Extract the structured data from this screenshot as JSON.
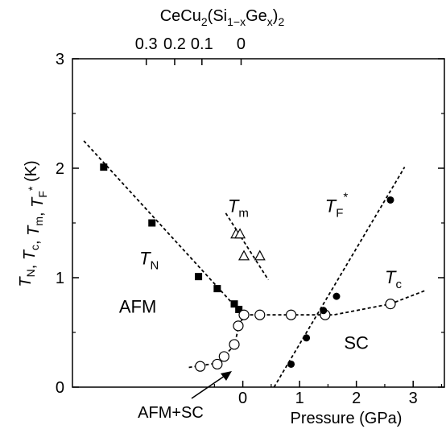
{
  "chart_data": {
    "type": "scatter",
    "top_axis": {
      "title": {
        "base": "CeCu",
        "sub1": "2",
        "mid": "(Si",
        "sub2": "1−x",
        "mid2": "Ge",
        "sub3": "x",
        "end": ")",
        "sub4": "2"
      },
      "ticks": [
        {
          "label": "0.3",
          "pressure": -1.7
        },
        {
          "label": "0.2",
          "pressure": -1.2
        },
        {
          "label": "0.1",
          "pressure": -0.72
        },
        {
          "label": "0",
          "pressure": -0.03
        }
      ]
    },
    "x_axis": {
      "label": "Pressure  (GPa)",
      "range": [
        -3.0,
        3.55
      ],
      "ticks": [
        0,
        1,
        2,
        3
      ]
    },
    "y_axis": {
      "label_parts": [
        {
          "t": "T",
          "i": true
        },
        {
          "t": "N",
          "sub": true
        },
        {
          "t": ", "
        },
        {
          "t": "T",
          "i": true
        },
        {
          "t": "c",
          "sub": true
        },
        {
          "t": ", "
        },
        {
          "t": "T",
          "i": true
        },
        {
          "t": "m",
          "sub": true
        },
        {
          "t": ", "
        },
        {
          "t": "T",
          "i": true
        },
        {
          "t": "F",
          "sub": true
        },
        {
          "t": "*",
          "sup": true
        },
        {
          "t": "  (K)"
        }
      ],
      "range": [
        0,
        3
      ],
      "ticks": [
        0,
        1,
        2,
        3
      ]
    },
    "series": [
      {
        "name": "T_N",
        "marker": "filled-square",
        "points": [
          [
            -2.45,
            2.01
          ],
          [
            -1.6,
            1.5
          ],
          [
            -0.78,
            1.01
          ],
          [
            -0.45,
            0.9
          ],
          [
            -0.15,
            0.76
          ],
          [
            -0.07,
            0.71
          ]
        ]
      },
      {
        "name": "T_m",
        "marker": "open-triangle",
        "points": [
          [
            -0.12,
            1.4
          ],
          [
            -0.05,
            1.4
          ],
          [
            0.02,
            1.2
          ],
          [
            0.3,
            1.2
          ]
        ]
      },
      {
        "name": "T_c",
        "marker": "open-circle",
        "points": [
          [
            -0.75,
            0.19
          ],
          [
            -0.45,
            0.21
          ],
          [
            -0.33,
            0.28
          ],
          [
            -0.15,
            0.39
          ],
          [
            -0.08,
            0.56
          ],
          [
            0.02,
            0.66
          ],
          [
            0.3,
            0.66
          ],
          [
            0.85,
            0.66
          ],
          [
            1.45,
            0.66
          ],
          [
            2.6,
            0.76
          ]
        ]
      },
      {
        "name": "T_F*",
        "marker": "filled-circle",
        "points": [
          [
            0.85,
            0.21
          ],
          [
            1.12,
            0.45
          ],
          [
            1.42,
            0.7
          ],
          [
            1.65,
            0.83
          ],
          [
            2.6,
            1.71
          ]
        ]
      }
    ],
    "fit_lines": [
      {
        "series": "T_N",
        "points": [
          [
            -2.8,
            2.25
          ],
          [
            -0.05,
            0.69
          ]
        ]
      },
      {
        "series": "T_m",
        "points": [
          [
            -0.3,
            1.59
          ],
          [
            0.45,
            0.98
          ]
        ]
      },
      {
        "series": "T_c",
        "points": [
          [
            -0.95,
            0.18
          ],
          [
            -0.45,
            0.22
          ],
          [
            -0.15,
            0.38
          ],
          [
            -0.05,
            0.6
          ],
          [
            0.1,
            0.66
          ],
          [
            0.9,
            0.66
          ],
          [
            1.6,
            0.66
          ],
          [
            2.6,
            0.76
          ],
          [
            3.2,
            0.88
          ]
        ]
      },
      {
        "series": "T_F*",
        "points": [
          [
            0.55,
            0.0
          ],
          [
            2.85,
            2.01
          ]
        ]
      }
    ],
    "labels": [
      {
        "id": "tn",
        "main": "T",
        "sub": "N",
        "x": -1.65,
        "y": 1.12
      },
      {
        "id": "tm",
        "main": "T",
        "sub": "m",
        "x": -0.08,
        "y": 1.6
      },
      {
        "id": "tf",
        "main": "T",
        "sub": "F",
        "sup": "*",
        "x": 1.65,
        "y": 1.6
      },
      {
        "id": "tc",
        "main": "T",
        "sub": "c",
        "x": 2.65,
        "y": 0.95
      },
      {
        "id": "afm",
        "text": "AFM",
        "x": -1.85,
        "y": 0.68
      },
      {
        "id": "sc",
        "text": "SC",
        "x": 2.0,
        "y": 0.35
      }
    ],
    "annotation": {
      "text": "AFM+SC"
    },
    "grid": false
  }
}
